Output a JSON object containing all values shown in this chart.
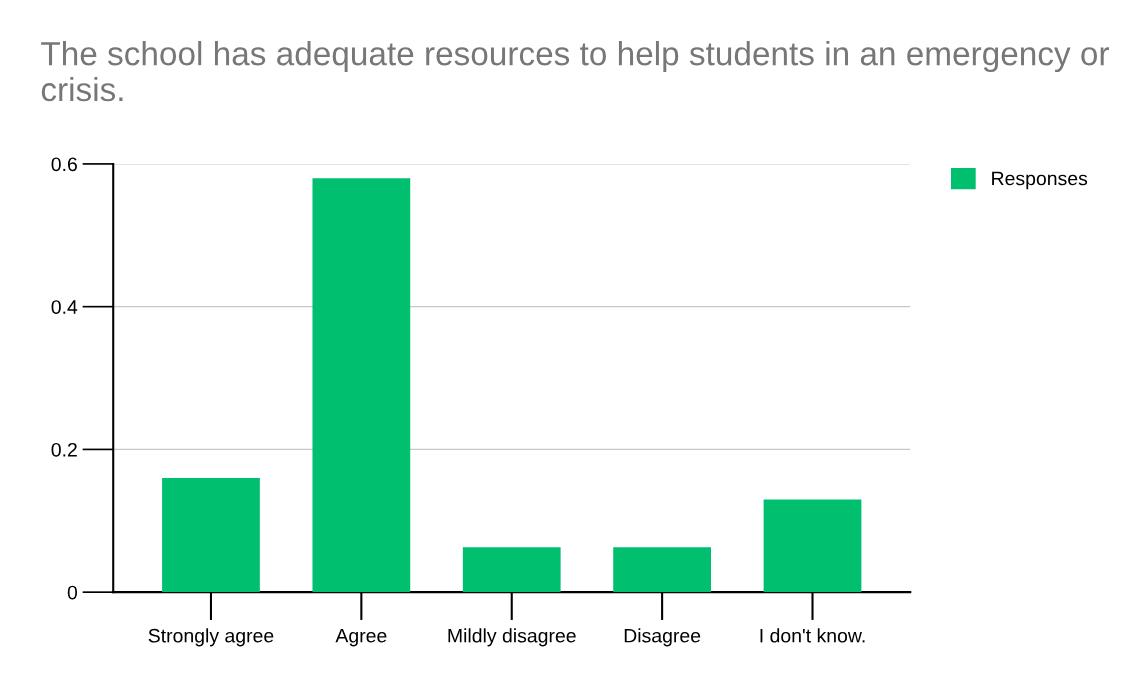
{
  "chart_data": {
    "type": "bar",
    "title": "The school has adequate resources to help students in an emergency or crisis.",
    "categories": [
      "Strongly agree",
      "Agree",
      "Mildly disagree",
      "Disagree",
      "I don't know."
    ],
    "series": [
      {
        "name": "Responses",
        "color": "#00bf6f",
        "values": [
          0.16,
          0.58,
          0.063,
          0.063,
          0.13
        ]
      }
    ],
    "ylim": [
      0,
      0.6
    ],
    "yticks": [
      0,
      0.2,
      0.4,
      0.6
    ],
    "grid": "y",
    "legend": "top right"
  }
}
